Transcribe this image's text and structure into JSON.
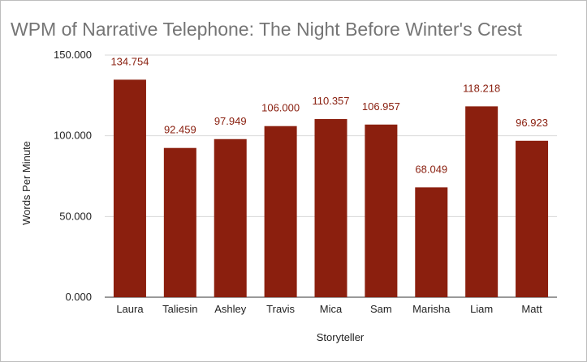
{
  "chart_data": {
    "type": "bar",
    "title": "WPM of Narrative Telephone: The Night Before Winter's Crest",
    "xlabel": "Storyteller",
    "ylabel": "Words Per Minute",
    "categories": [
      "Laura",
      "Taliesin",
      "Ashley",
      "Travis",
      "Mica",
      "Sam",
      "Marisha",
      "Liam",
      "Matt"
    ],
    "values": [
      134.754,
      92.459,
      97.949,
      106.0,
      110.357,
      106.957,
      68.049,
      118.218,
      96.923
    ],
    "value_labels": [
      "134.754",
      "92.459",
      "97.949",
      "106.000",
      "110.357",
      "106.957",
      "68.049",
      "118.218",
      "96.923"
    ],
    "ylim": [
      0,
      150
    ],
    "yticks": [
      0,
      50,
      100,
      150
    ],
    "ytick_labels": [
      "0.000",
      "50.000",
      "100.000",
      "150.000"
    ],
    "grid": true,
    "legend": "none",
    "colors": {
      "bar": "#8b1f0e",
      "data_label": "#8a2010",
      "title": "#757575"
    }
  }
}
